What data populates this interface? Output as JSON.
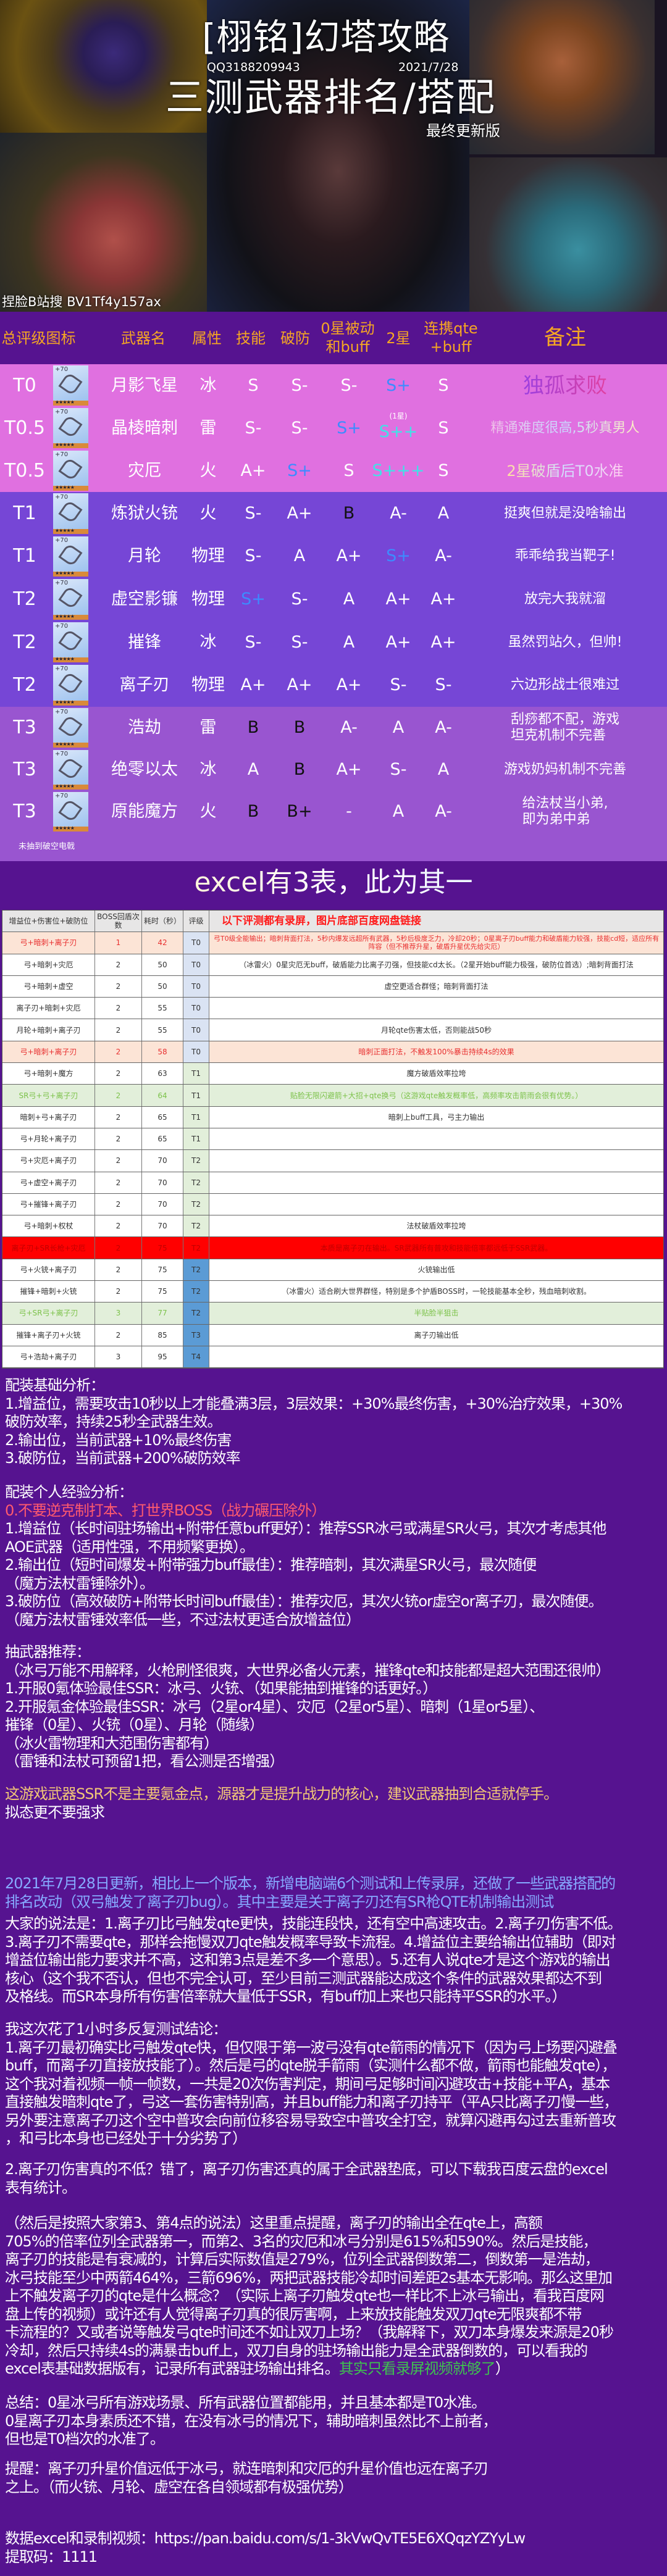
{
  "hero": {
    "title": "[栩铭]幻塔攻略",
    "qq": "QQ3188209943",
    "date": "2021/7/28",
    "subtitle": "三测武器排名/搭配",
    "version": "最终更新版",
    "bilibili": "捏脸B站搜 BV1Tf4y157ax"
  },
  "weapon_table": {
    "headers": {
      "tier_icon": "总评级图标",
      "name": "武器名",
      "attr": "属性",
      "skill": "技能",
      "break": "破防",
      "zero_star_l1": "0星被动",
      "zero_star_l2": "和buff",
      "two_star": "2星",
      "qte_l1": "连携qte",
      "qte_l2": "+buff",
      "note": "备注"
    },
    "grade_colors": {
      "S+": "#3d8bff",
      "S++": "#3fe3e6",
      "S+++": "#3fe3e6",
      "B": "#111111",
      "B+": "#111111"
    },
    "tier_bg": {
      "pink": "#e070e0",
      "purple": "#7646d6",
      "violet": "#9955d0"
    },
    "rows": [
      {
        "tier": "T0",
        "name": "月影飞星",
        "attr": "冰",
        "skill": "S",
        "break": "S-",
        "zero": "S-",
        "two": "S+",
        "qte": "S",
        "note": [
          "独孤求败"
        ],
        "note_style": "grad1",
        "bg": "pink",
        "icon": "bow-icon"
      },
      {
        "tier": "T0.5",
        "name": "晶棱暗刺",
        "attr": "雷",
        "skill": "S-",
        "break": "S-",
        "zero": "S+",
        "two": "S++",
        "two_sup": "(1星)",
        "qte": "S",
        "note": [
          "精通难度很高,5秒真男人"
        ],
        "note_style": "grad2",
        "bg": "pink",
        "icon": "dual-blade-icon"
      },
      {
        "tier": "T0.5",
        "name": "灾厄",
        "attr": "火",
        "skill": "A+",
        "break": "S+",
        "zero": "S",
        "two": "S+++",
        "qte": "S",
        "note": [
          "2星破盾后T0水准"
        ],
        "note_style": "grad3",
        "bg": "pink",
        "icon": "scythe-icon"
      },
      {
        "tier": "T1",
        "name": "炼狱火铳",
        "attr": "火",
        "skill": "S-",
        "break": "A+",
        "zero": "B",
        "two": "A-",
        "qte": "A",
        "note": [
          "挺爽但就是没啥输出"
        ],
        "bg": "purple",
        "icon": "gun-icon"
      },
      {
        "tier": "T1",
        "name": "月轮",
        "attr": "物理",
        "skill": "S-",
        "break": "A",
        "zero": "A+",
        "two": "S+",
        "qte": "A-",
        "note": [
          "乖乖给我当靶子!"
        ],
        "bg": "purple",
        "icon": "chakram-icon"
      },
      {
        "tier": "T2",
        "name": "虚空影镰",
        "attr": "物理",
        "skill": "S+",
        "break": "S-",
        "zero": "A",
        "two": "A+",
        "qte": "A+",
        "note": [
          "放完大我就溜"
        ],
        "bg": "purple",
        "icon": "scythe-icon"
      },
      {
        "tier": "T2",
        "name": "摧锋",
        "attr": "冰",
        "skill": "S-",
        "break": "S-",
        "zero": "A",
        "two": "A+",
        "qte": "A+",
        "note": [
          "虽然罚站久，但帅!"
        ],
        "bg": "purple",
        "icon": "spear-icon"
      },
      {
        "tier": "T2",
        "name": "离子刃",
        "attr": "物理",
        "skill": "A+",
        "break": "A+",
        "zero": "A+",
        "two": "S-",
        "qte": "S-",
        "note": [
          "六边形战士很难过"
        ],
        "bg": "purple",
        "icon": "sword-icon"
      },
      {
        "tier": "T3",
        "name": "浩劫",
        "attr": "雷",
        "skill": "B",
        "break": "B",
        "zero": "A-",
        "two": "A",
        "qte": "A-",
        "note": [
          "刮痧都不配，游戏",
          "坦克机制不完善"
        ],
        "bg": "violet",
        "icon": "hammer-icon"
      },
      {
        "tier": "T3",
        "name": "绝零以太",
        "attr": "冰",
        "skill": "A",
        "break": "B",
        "zero": "A+",
        "two": "S-",
        "qte": "A",
        "note": [
          "游戏奶妈机制不完善"
        ],
        "bg": "violet",
        "icon": "staff-icon"
      },
      {
        "tier": "T3",
        "name": "原能魔方",
        "attr": "火",
        "skill": "B",
        "break": "B+",
        "zero": "-",
        "two": "A",
        "qte": "A-",
        "note": [
          "给法杖当小弟,",
          "即为弟中弟"
        ],
        "bg": "violet",
        "icon": "cube-icon"
      }
    ],
    "footnote": "未抽到破空电戟"
  },
  "excel": {
    "title": "excel有3表，此为其一",
    "headers": [
      "增益位+伤害位+破防位",
      "BOSS回盾次数",
      "耗时（秒）",
      "评级",
      "以下评测都有录屏，图片底部百度网盘链接"
    ],
    "rating_colors": {
      "t0": "#dae3f3",
      "green": "#e2efda",
      "blue": "#5b9bd5"
    },
    "row_styles": {
      "peach": {
        "bg": "#fce4d6",
        "fg": "#e83030"
      },
      "green": {
        "bg": "#e2efda",
        "fg": "#7cc24a"
      },
      "red": {
        "bg": "#ff0000",
        "fg": "#c00000"
      },
      "normal": {
        "bg": "#ffffff",
        "fg": "#333333"
      }
    },
    "rows": [
      {
        "combo": "弓+暗刺+离子刃",
        "shield": "1",
        "time": "42",
        "rating": "T0",
        "rc": "t0",
        "style": "peach",
        "note": "弓T0级全能输出；暗刺背面打法，5秒内爆发远超所有武器，5秒后极度乏力，冷却20秒；0星离子刃buff能力和破盾能力较强，技能cd短，适应所有阵容（但不推荐升星，破盾升星优先给灾厄）"
      },
      {
        "combo": "弓+暗刺+灾厄",
        "shield": "2",
        "time": "50",
        "rating": "T0",
        "rc": "t0",
        "style": "normal",
        "note": "（冰雷火）0星灾厄无buff，破盾能力比离子刃强，但技能cd太长。（2星开始buff能力极强，破防位首选）;暗刺背面打法"
      },
      {
        "combo": "弓+暗刺+虚空",
        "shield": "2",
        "time": "50",
        "rating": "T0",
        "rc": "t0",
        "style": "normal",
        "note": "虚空更适合群怪；暗刺背面打法"
      },
      {
        "combo": "离子刃+暗刺+灾厄",
        "shield": "2",
        "time": "55",
        "rating": "T0",
        "rc": "t0",
        "style": "normal",
        "note": ""
      },
      {
        "combo": "月轮+暗刺+离子刃",
        "shield": "2",
        "time": "55",
        "rating": "T0",
        "rc": "t0",
        "style": "normal",
        "note": "月轮qte伤害太低，否则能战50秒"
      },
      {
        "combo": "弓+暗刺+离子刃",
        "shield": "2",
        "time": "58",
        "rating": "T0",
        "rc": "t0",
        "style": "peach",
        "note": "暗刺正面打法，不触发100%暴击持续4s的效果"
      },
      {
        "combo": "弓+暗刺+魔方",
        "shield": "2",
        "time": "63",
        "rating": "T1",
        "rc": "green",
        "style": "normal",
        "note": "魔方破盾效率拉垮"
      },
      {
        "combo": "SR弓+弓+离子刃",
        "shield": "2",
        "time": "64",
        "rating": "T1",
        "rc": "green",
        "style": "green",
        "note": "贴脸无限闪避箭+大招+qte换弓（这游戏qte触发概率低，高频率攻击箭雨会很有优势。）"
      },
      {
        "combo": "暗刺+弓+离子刃",
        "shield": "2",
        "time": "65",
        "rating": "T1",
        "rc": "green",
        "style": "normal",
        "note": "暗刺上buff工具，弓主力输出"
      },
      {
        "combo": "弓+月轮+离子刃",
        "shield": "2",
        "time": "65",
        "rating": "T1",
        "rc": "green",
        "style": "normal",
        "note": ""
      },
      {
        "combo": "弓+灾厄+离子刃",
        "shield": "2",
        "time": "70",
        "rating": "T2",
        "rc": "green",
        "style": "normal",
        "note": ""
      },
      {
        "combo": "弓+虚空+离子刃",
        "shield": "2",
        "time": "70",
        "rating": "T2",
        "rc": "green",
        "style": "normal",
        "note": ""
      },
      {
        "combo": "弓+摧锋+离子刃",
        "shield": "2",
        "time": "70",
        "rating": "T2",
        "rc": "green",
        "style": "normal",
        "note": ""
      },
      {
        "combo": "弓+暗刺+权杖",
        "shield": "2",
        "time": "70",
        "rating": "T2",
        "rc": "green",
        "style": "normal",
        "note": "法杖破盾效率拉垮"
      },
      {
        "combo": "离子刃+SR长枪+灾厄",
        "shield": "2",
        "time": "75",
        "rating": "T2",
        "rc": "red",
        "style": "red",
        "note": "本质是离子刃在输出。SR武器所有普攻和技能倍率都远低于SSR武器。"
      },
      {
        "combo": "弓+火铳+离子刃",
        "shield": "2",
        "time": "75",
        "rating": "T2",
        "rc": "blue",
        "style": "normal",
        "note": "火铳输出低"
      },
      {
        "combo": "摧锋+暗刺+火铳",
        "shield": "2",
        "time": "75",
        "rating": "T2",
        "rc": "blue",
        "style": "normal",
        "note": "（冰雷火）适合刷大世界群怪，特别是多个护盾BOSS时，一轮技能基本全秒，残血暗刺收割。"
      },
      {
        "combo": "弓+SR弓+离子刃",
        "shield": "3",
        "time": "77",
        "rating": "T2",
        "rc": "blue",
        "style": "green",
        "note": "半贴脸半狙击"
      },
      {
        "combo": "摧锋+离子刃+火铳",
        "shield": "2",
        "time": "85",
        "rating": "T3",
        "rc": "blue",
        "style": "normal",
        "note": "离子刃输出低"
      },
      {
        "combo": "弓+浩劫+离子刃",
        "shield": "3",
        "time": "95",
        "rating": "T4",
        "rc": "blue",
        "style": "normal",
        "note": ""
      }
    ]
  },
  "text_colors": {
    "white": "#ffffff",
    "red": "#ff5a6e",
    "gold": "#f2c777",
    "blue": "#86aaff",
    "green": "#3fc24f"
  },
  "sections": [
    {
      "id": "basic",
      "lines": [
        [
          [
            "配装基础分析：",
            "white"
          ]
        ],
        [
          [
            "1.增益位，需要攻击10秒以上才能叠满3层，3层效果：+30%最终伤害，+30%治疗效果，+30%",
            "white"
          ]
        ],
        [
          [
            "破防效率，持续25秒全武器生效。",
            "white"
          ]
        ],
        [
          [
            "2.输出位，当前武器+10%最终伤害",
            "white"
          ]
        ],
        [
          [
            "3.破防位，当前武器+200%破防效率",
            "white"
          ]
        ]
      ]
    },
    {
      "id": "personal",
      "lines": [
        [
          [
            "配装个人经验分析：",
            "white"
          ]
        ],
        [
          [
            "0.不要逆克制打本、打世界BOSS（战力碾压除外）",
            "red"
          ]
        ],
        [
          [
            "1.增益位（长时间驻场输出+附带任意buff更好）：推荐SSR冰弓或满星SR火弓，其次才考虑其他",
            "white"
          ]
        ],
        [
          [
            "AOE武器（适用性强，不用频繁更换）。",
            "white"
          ]
        ],
        [
          [
            "2.输出位（短时间爆发+附带强力buff最佳）：推荐暗刺，其次满星SR火弓，最次随便",
            "white"
          ]
        ],
        [
          [
            "（魔方法杖雷锤除外）。",
            "white"
          ]
        ],
        [
          [
            "3.破防位（高效破防+附带长时间buff最佳）：推荐灾厄，其次火铳or虚空or离子刃，最次随便。",
            "white"
          ]
        ],
        [
          [
            "（魔方法杖雷锤效率低一些，不过法杖更适合放增益位）",
            "white"
          ]
        ]
      ]
    },
    {
      "id": "gacha",
      "lines": [
        [
          [
            "抽武器推荐：",
            "white"
          ]
        ],
        [
          [
            "（冰弓万能不用解释，火枪刷怪很爽，大世界必备火元素，摧锋qte和技能都是超大范围还很帅）",
            "white"
          ]
        ],
        [
          [
            "1.开服0氪体验最佳SSR：冰弓、火铳、（如果能抽到摧锋的话更好。）",
            "white"
          ]
        ],
        [
          [
            "2.开服氪金体验最佳SSR：冰弓（2星or4星）、灾厄（2星or5星）、暗刺（1星or5星）、",
            "white"
          ]
        ],
        [
          [
            "摧锋（0星）、火铳（0星）、月轮（随缘）",
            "white"
          ]
        ],
        [
          [
            "（冰火雷物理和大范围伤害都有）",
            "white"
          ]
        ],
        [
          [
            "（雷锤和法杖可预留1把，看公测是否增强）",
            "white"
          ]
        ]
      ]
    },
    {
      "id": "advice",
      "lines": [
        [
          [
            "这游戏武器SSR不是主要氪金点，源器才是提升战力的核心，建议武器抽到合适就停手。",
            "gold"
          ]
        ],
        [
          [
            "拟态更不要强求",
            "white"
          ]
        ]
      ]
    },
    {
      "id": "update",
      "lines": [
        [
          [
            "2021年7月28日更新，相比上一个版本，新增电脑端6个测试和上传录屏，还做了一些武器搭配的",
            "blue"
          ]
        ],
        [
          [
            "排名改动（双弓触发了离子刃bug）。其中主要是关于离子刃还有SR枪QTE机制输出测试",
            "blue"
          ]
        ]
      ]
    },
    {
      "id": "opinions",
      "lines": [
        [
          [
            "大家的说法是：1.离子刃比弓触发qte更快，技能连段快，还有空中高速攻击。2.离子刃伤害不低。",
            "white"
          ]
        ],
        [
          [
            "3.离子刃不需要qte，那样会拖慢双刀qte触发概率导致卡流程。4.增益位主要给输出位辅助（即对",
            "white"
          ]
        ],
        [
          [
            "增益位输出能力要求并不高，这和第3点是差不多一个意思）。5.还有人说qte才是这个游戏的输出",
            "white"
          ]
        ],
        [
          [
            "核心（这个我不否认，但也不完全认可，至少目前三测武器能达成这个条件的武器效果都达不到",
            "white"
          ]
        ],
        [
          [
            "及格线。而SR本身所有伤害倍率就大量低于SSR，有buff加上来也只能持平SSR的水平。）",
            "white"
          ]
        ]
      ]
    },
    {
      "id": "conclusion1",
      "lines": [
        [
          [
            "我这次花了1小时多反复测试结论：",
            "white"
          ]
        ],
        [
          [
            "1.离子刃最初确实比弓触发qte快，但仅限于第一波弓没有qte箭雨的情况下（因为弓上场要闪避叠",
            "white"
          ]
        ],
        [
          [
            "buff，而离子刃直接放技能了）。然后是弓的qte脱手箭雨（实测什么都不做，箭雨也能触发qte），",
            "white"
          ]
        ],
        [
          [
            "这个我对着视频一帧一帧数，一共是20次伤害判定，期间弓足够时间闪避攻击+技能+平A，基本",
            "white"
          ]
        ],
        [
          [
            "直接触发暗刺qte了，弓这一套伤害特别高，并且buff能力和离子刃持平（平A只比离子刃慢一些，",
            "white"
          ]
        ],
        [
          [
            "另外要注意离子刃这个空中普攻会向前位移容易导致空中普攻全打空，就算闪避再勾过去重新普攻",
            "white"
          ]
        ],
        [
          [
            "，和弓比本身也已经处于十分劣势了）",
            "white"
          ]
        ]
      ]
    },
    {
      "id": "conclusion2",
      "lines": [
        [
          [
            "2.离子刃伤害真的不低？错了，离子刃伤害还真的属于全武器垫底，可以下载我百度云盘的excel",
            "white"
          ]
        ],
        [
          [
            "表有统计。",
            "white"
          ]
        ]
      ]
    },
    {
      "id": "conclusion3",
      "lines": [
        [
          [
            "（然后是按照大家第3、第4点的说法）这里重点提醒，离子刃的输出全在qte上，高额",
            "white"
          ]
        ],
        [
          [
            "705%的倍率位列全武器第一，而第2、3名的灾厄和冰弓分别是615%和590%。然后是技能，",
            "white"
          ]
        ],
        [
          [
            "离子刃的技能是有衰减的，计算后实际数值是279%，位列全武器倒数第二，倒数第一是浩劫，",
            "white"
          ]
        ],
        [
          [
            "冰弓技能至少中两箭464%，三箭696%，两把武器技能冷却时间差距2s基本无影响。那么这里加",
            "white"
          ]
        ],
        [
          [
            "上不触发离子刃的qte是什么概念？（实际上离子刃触发qte也一样比不上冰弓输出，看我百度网",
            "white"
          ]
        ],
        [
          [
            "盘上传的视频）或许还有人觉得离子刃真的很厉害啊，上来放技能触发双刀qte无限爽都不带",
            "white"
          ]
        ],
        [
          [
            "卡流程的？又或者说等触发弓qte时间还不如让双刀上场？（我解释下，双刀本身爆发来源是20秒",
            "white"
          ]
        ],
        [
          [
            "冷却，然后只持续4s的满暴击buff上，双刀自身的驻场输出能力是全武器倒数的，可以看我的",
            "white"
          ]
        ],
        [
          [
            "excel表基础数据版有，记录所有武器驻场输出排名。",
            "white"
          ],
          [
            "其实只看录屏视频就够了",
            "green"
          ],
          [
            "）",
            "white"
          ]
        ]
      ]
    },
    {
      "id": "summary",
      "lines": [
        [
          [
            "总结：0星冰弓所有游戏场景、所有武器位置都能用，并且基本都是T0水准。",
            "white"
          ]
        ],
        [
          [
            "0星离子刃本身素质还不错，在没有冰弓的情况下，辅助暗刺虽然比不上前者，",
            "white"
          ]
        ],
        [
          [
            "但也是T0档次的水准了。",
            "white"
          ]
        ]
      ]
    },
    {
      "id": "reminder",
      "lines": [
        [
          [
            "提醒：离子刃升星价值远低于冰弓，就连暗刺和灾厄的升星价值也远在离子刃",
            "white"
          ]
        ],
        [
          [
            "之上。（而火铳、月轮、虚空在各自领域都有极强优势）",
            "white"
          ]
        ]
      ]
    },
    {
      "id": "link",
      "lines": [
        [
          [
            "数据excel和录制视频：https://pan.baidu.com/s/1-3kVwQvTE5E6XQqzYZYyLw",
            "white"
          ]
        ],
        [
          [
            "提取码：1111",
            "white"
          ]
        ]
      ]
    }
  ]
}
